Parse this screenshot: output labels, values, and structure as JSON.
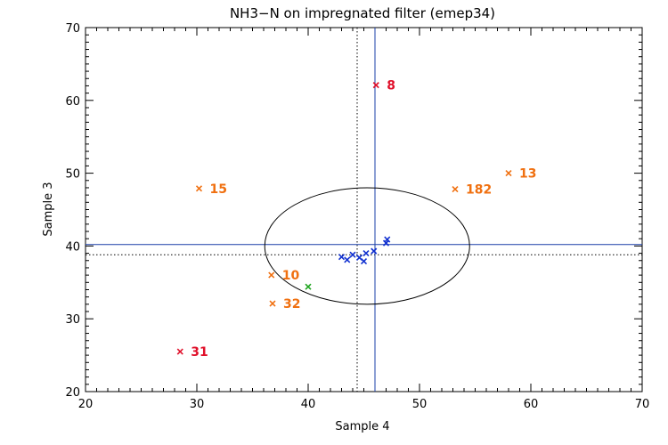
{
  "chart_data": {
    "type": "scatter",
    "title": "NH3−N on impregnated filter (emep34)",
    "xlabel": "Sample 4",
    "ylabel": "Sample 3",
    "xlim": [
      20,
      70
    ],
    "ylim": [
      20,
      70
    ],
    "xticks": [
      20,
      30,
      40,
      50,
      60,
      70
    ],
    "yticks": [
      20,
      30,
      40,
      50,
      60,
      70
    ],
    "grid": false,
    "reference": {
      "x_median": 46.0,
      "y_median": 40.2,
      "x_assigned": 44.4,
      "y_assigned": 38.8,
      "ellipse": {
        "cx": 45.3,
        "cy": 40.0,
        "rx": 9.2,
        "ry": 8.0
      }
    },
    "colors": {
      "axis": "#000000",
      "reference_line": "#1a3fa8",
      "inlier": "#1030d0",
      "within_limit": "#1fa51f",
      "warning": "#f07010",
      "outlier": "#e0102a"
    },
    "series": [
      {
        "category": "inlier",
        "points": [
          {
            "x": 43.0,
            "y": 38.5
          },
          {
            "x": 43.5,
            "y": 38.1
          },
          {
            "x": 44.0,
            "y": 38.8
          },
          {
            "x": 44.6,
            "y": 38.4
          },
          {
            "x": 45.0,
            "y": 37.9
          },
          {
            "x": 45.2,
            "y": 39.0
          },
          {
            "x": 45.9,
            "y": 39.3
          },
          {
            "x": 47.0,
            "y": 40.4
          },
          {
            "x": 47.1,
            "y": 40.9
          }
        ]
      },
      {
        "category": "within_limit",
        "points": [
          {
            "x": 40.0,
            "y": 34.4
          }
        ]
      },
      {
        "category": "warning",
        "points": [
          {
            "x": 30.2,
            "y": 47.9,
            "label": "15"
          },
          {
            "x": 36.7,
            "y": 36.0,
            "label": "10"
          },
          {
            "x": 36.8,
            "y": 32.1,
            "label": "32"
          },
          {
            "x": 53.2,
            "y": 47.8,
            "label": "182"
          },
          {
            "x": 58.0,
            "y": 50.0,
            "label": "13"
          }
        ]
      },
      {
        "category": "outlier",
        "points": [
          {
            "x": 46.1,
            "y": 62.1,
            "label": "8"
          },
          {
            "x": 28.5,
            "y": 25.5,
            "label": "31"
          }
        ]
      }
    ]
  }
}
